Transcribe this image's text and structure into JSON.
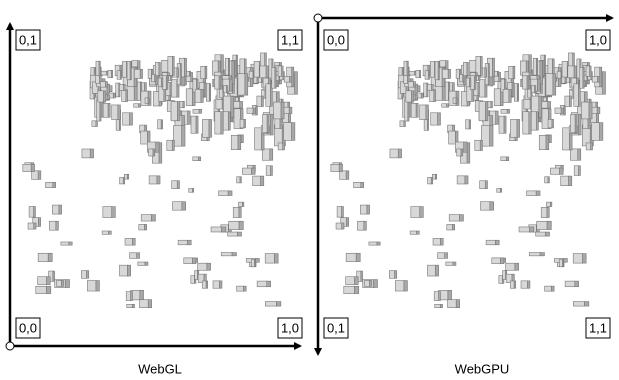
{
  "panels": [
    {
      "caption": "WebGL",
      "corners": {
        "top_left": "0,1",
        "top_right": "1,1",
        "bottom_left": "0,0",
        "bottom_right": "1,0"
      }
    },
    {
      "caption": "WebGPU",
      "corners": {
        "top_left": "0,0",
        "top_right": "1,0",
        "bottom_left": "0,1",
        "bottom_right": "1,1"
      }
    }
  ]
}
